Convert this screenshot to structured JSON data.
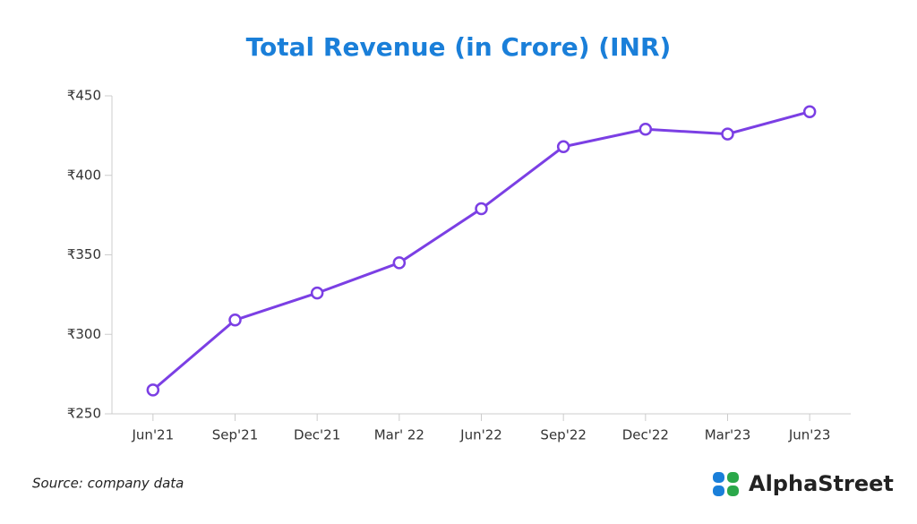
{
  "chart_data": {
    "type": "line",
    "title": "Total Revenue (in Crore) (INR)",
    "categories": [
      "Jun'21",
      "Sep'21",
      "Dec'21",
      "Mar' 22",
      "Jun'22",
      "Sep'22",
      "Dec'22",
      "Mar'23",
      "Jun'23"
    ],
    "series": [
      {
        "name": "Total Revenue",
        "color": "#7b3fe4",
        "values": [
          265,
          309,
          326,
          345,
          379,
          418,
          429,
          426,
          440
        ]
      }
    ],
    "ylim": [
      250,
      450
    ],
    "yticks": [
      {
        "value": 250,
        "label": "₹250"
      },
      {
        "value": 300,
        "label": "₹300"
      },
      {
        "value": 350,
        "label": "₹350"
      },
      {
        "value": 400,
        "label": "₹400"
      },
      {
        "value": 450,
        "label": "₹450"
      }
    ],
    "grid": false
  },
  "source": "Source: company data",
  "logo": "AlphaStreet"
}
